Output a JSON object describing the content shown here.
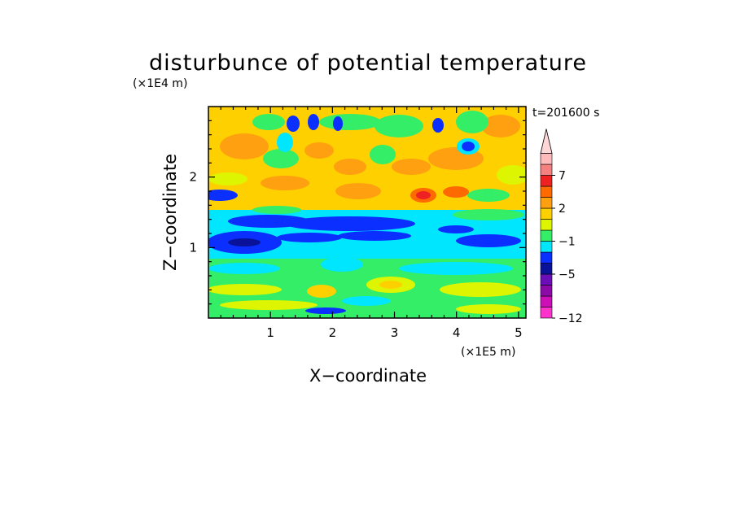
{
  "chart_data": {
    "type": "heatmap",
    "title": "disturbunce of potential temperature",
    "time_label": "t=201600 s",
    "xlabel": "X−coordinate",
    "ylabel": "Z−coordinate",
    "x_scale_label": "(×1E5 m)",
    "y_scale_label": "(×1E4 m)",
    "xlim": [
      0,
      5.12
    ],
    "ylim": [
      0,
      3.0
    ],
    "x_ticks": [
      {
        "value": 1,
        "label": "1"
      },
      {
        "value": 2,
        "label": "2"
      },
      {
        "value": 3,
        "label": "3"
      },
      {
        "value": 4,
        "label": "4"
      },
      {
        "value": 5,
        "label": "5"
      }
    ],
    "y_ticks": [
      {
        "value": 1,
        "label": "1"
      },
      {
        "value": 2,
        "label": "2"
      }
    ],
    "colorbar": {
      "levels": [
        {
          "color": "#ff33cc"
        },
        {
          "color": "#cc0fb6"
        },
        {
          "color": "#8b0aa8"
        },
        {
          "color": "#6a0fb8"
        },
        {
          "color": "#0a1299"
        },
        {
          "color": "#0a2fff"
        },
        {
          "color": "#00e6ff"
        },
        {
          "color": "#33ee66"
        },
        {
          "color": "#ddf500"
        },
        {
          "color": "#ffd000"
        },
        {
          "color": "#ffa010"
        },
        {
          "color": "#ff6a00"
        },
        {
          "color": "#ee2222"
        },
        {
          "color": "#f48080"
        },
        {
          "color": "#ffbbbb"
        }
      ],
      "extend_top_color": "#ffd6d6",
      "labels": [
        {
          "text": "−12",
          "at": 0
        },
        {
          "text": "−5",
          "at": 4
        },
        {
          "text": "−1",
          "at": 7
        },
        {
          "text": "2",
          "at": 10
        },
        {
          "text": "7",
          "at": 13
        }
      ]
    }
  }
}
